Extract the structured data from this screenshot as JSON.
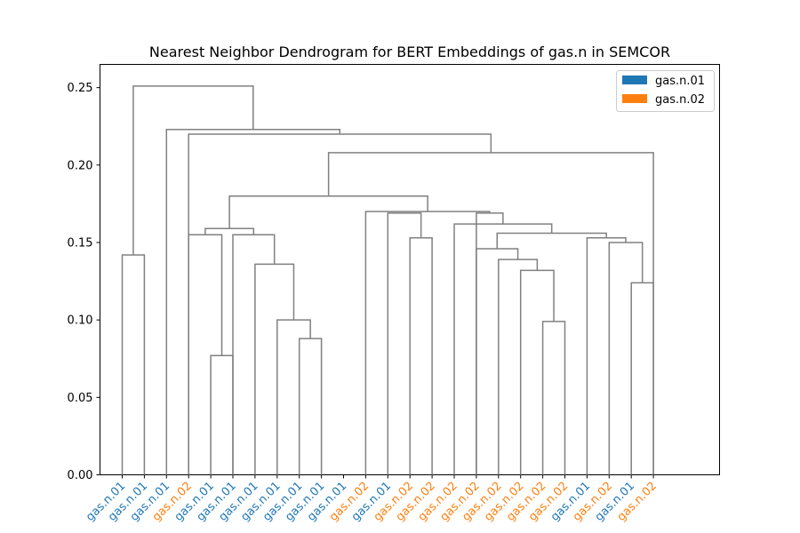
{
  "chart_data": {
    "type": "dendrogram",
    "title": "Nearest Neighbor Dendrogram for BERT Embeddings of gas.n in SEMCOR",
    "xlabel": "",
    "ylabel": "",
    "ylim": [
      0,
      0.265
    ],
    "yticks": [
      0.0,
      0.05,
      0.1,
      0.15,
      0.2,
      0.25
    ],
    "ytick_labels": [
      "0.00",
      "0.05",
      "0.10",
      "0.15",
      "0.20",
      "0.25"
    ],
    "line_color": "#808080",
    "legend": {
      "position": "top-right",
      "entries": [
        {
          "label": "gas.n.01",
          "color": "#1f77b4"
        },
        {
          "label": "gas.n.02",
          "color": "#ff7f0e"
        }
      ]
    },
    "sense_colors": {
      "gas.n.01": "#1f77b4",
      "gas.n.02": "#ff7f0e"
    },
    "leaves": [
      "gas.n.01",
      "gas.n.01",
      "gas.n.01",
      "gas.n.02",
      "gas.n.01",
      "gas.n.01",
      "gas.n.01",
      "gas.n.01",
      "gas.n.01",
      "gas.n.01",
      "gas.n.01",
      "gas.n.02",
      "gas.n.01",
      "gas.n.02",
      "gas.n.02",
      "gas.n.02",
      "gas.n.02",
      "gas.n.02",
      "gas.n.02",
      "gas.n.02",
      "gas.n.02",
      "gas.n.01",
      "gas.n.02",
      "gas.n.01",
      "gas.n.02"
    ],
    "merges": [
      {
        "a": {
          "leaf": 0
        },
        "b": {
          "leaf": 1
        },
        "height": 0.142
      },
      {
        "a": {
          "leaf": 4
        },
        "b": {
          "leaf": 5
        },
        "height": 0.077
      },
      {
        "a": {
          "leaf": 8
        },
        "b": {
          "leaf": 9
        },
        "height": 0.088
      },
      {
        "a": {
          "leaf": 19
        },
        "b": {
          "leaf": 20
        },
        "height": 0.099
      },
      {
        "a": {
          "leaf": 7
        },
        "b": {
          "node": 2
        },
        "height": 0.1
      },
      {
        "a": {
          "leaf": 23
        },
        "b": {
          "leaf": 24
        },
        "height": 0.124
      },
      {
        "a": {
          "leaf": 18
        },
        "b": {
          "node": 3
        },
        "height": 0.132
      },
      {
        "a": {
          "leaf": 6
        },
        "b": {
          "node": 4
        },
        "height": 0.136
      },
      {
        "a": {
          "leaf": 17
        },
        "b": {
          "node": 6
        },
        "height": 0.139
      },
      {
        "a": {
          "leaf": 16
        },
        "b": {
          "node": 8
        },
        "height": 0.146
      },
      {
        "a": {
          "leaf": 22
        },
        "b": {
          "node": 5
        },
        "height": 0.15
      },
      {
        "a": {
          "leaf": 21
        },
        "b": {
          "node": 10
        },
        "height": 0.153
      },
      {
        "a": {
          "leaf": 13
        },
        "b": {
          "leaf": 14
        },
        "height": 0.153
      },
      {
        "a": {
          "leaf": 3
        },
        "b": {
          "node": 1
        },
        "height": 0.155
      },
      {
        "a": {
          "leaf": 5
        },
        "b": {
          "node": 7
        },
        "height": 0.155
      },
      {
        "a": {
          "node": 9
        },
        "b": {
          "node": 11
        },
        "height": 0.156
      },
      {
        "a": {
          "node": 13
        },
        "b": {
          "node": 14
        },
        "height": 0.159
      },
      {
        "a": {
          "leaf": 15
        },
        "b": {
          "node": 15
        },
        "height": 0.162
      },
      {
        "a": {
          "node": 17
        },
        "b": {
          "leaf": 16
        },
        "height": 0.169
      },
      {
        "a": {
          "leaf": 12
        },
        "b": {
          "node": 12
        },
        "height": 0.169
      },
      {
        "a": {
          "leaf": 11
        },
        "b": {
          "node": 18
        },
        "height": 0.17
      },
      {
        "a": {
          "node": 16
        },
        "b": {
          "node": 20
        },
        "height": 0.18
      },
      {
        "a": {
          "node": 21
        },
        "b": {
          "leaf": 24
        },
        "height": 0.208
      },
      {
        "a": {
          "leaf": 3
        },
        "b": {
          "node": 22
        },
        "height": 0.22
      },
      {
        "a": {
          "leaf": 2
        },
        "b": {
          "node": 23
        },
        "height": 0.223
      },
      {
        "a": {
          "node": 0
        },
        "b": {
          "node": 24
        },
        "height": 0.251
      }
    ]
  }
}
